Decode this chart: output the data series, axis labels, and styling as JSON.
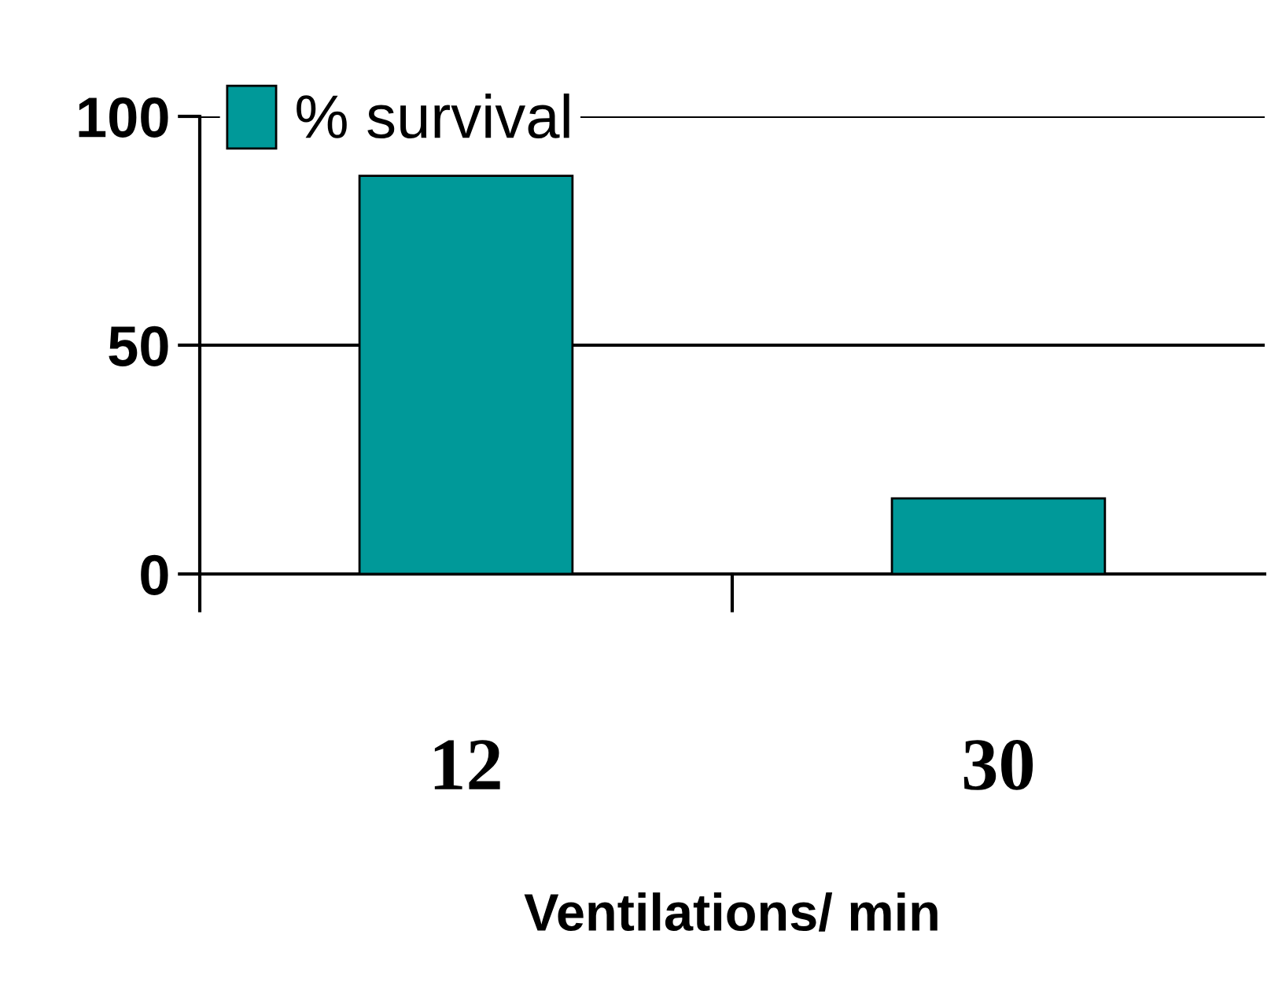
{
  "chart_data": {
    "type": "bar",
    "xlabel": "Ventilations/ min",
    "categories": [
      "12",
      "30"
    ],
    "series": [
      {
        "name": "% survival",
        "color": "#009999",
        "values": [
          87,
          16.5
        ]
      }
    ],
    "ylim": [
      0,
      100
    ],
    "yticks": [
      0,
      50,
      100
    ],
    "grid": "y",
    "legend": "top left"
  }
}
